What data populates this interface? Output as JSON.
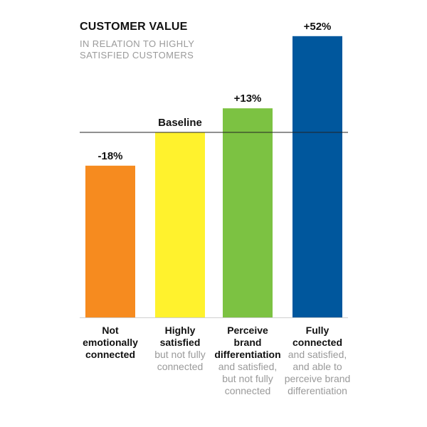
{
  "chart_data": {
    "type": "bar",
    "title": "CUSTOMER VALUE",
    "subtitle": "IN RELATION TO HIGHLY SATISFIED CUSTOMERS",
    "baseline_label": "Baseline",
    "categories": [
      {
        "main": "Not emotionally connected",
        "sub": ""
      },
      {
        "main": "Highly satisfied",
        "sub": "but not fully connected"
      },
      {
        "main": "Perceive brand differentiation",
        "sub": "and satisfied, but not fully connected"
      },
      {
        "main": "Fully connected",
        "sub": "and satisfied, and able to perceive brand differentiation"
      }
    ],
    "values": [
      -18,
      0,
      13,
      52
    ],
    "data_labels": [
      "-18%",
      "Baseline",
      "+13%",
      "+52%"
    ],
    "colors": [
      "#f68b1f",
      "#fff22d",
      "#7cc242",
      "#00579d"
    ],
    "baseline_value": 0,
    "ylim": [
      -100,
      60
    ]
  }
}
